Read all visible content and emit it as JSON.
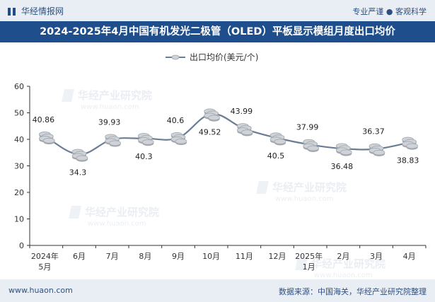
{
  "header": {
    "brand": "华经情报网",
    "slogan": "专业严谨 ● 客观科学"
  },
  "footer": {
    "url": "www.huaon.com",
    "source": "数据来源：中国海关，华经产业研究院整理"
  },
  "watermark": {
    "cn": "华经产业研究院",
    "url": "www.huaon.com"
  },
  "colors": {
    "line": "#6b7d95",
    "title_bg": "#1f4e8c",
    "bar_bg": "#e9eef5",
    "coin": "#cfd2d6"
  },
  "chart_data": {
    "type": "line",
    "title": "2024-2025年4月中国有机发光二极管（OLED）平板显示模组月度出口均价",
    "legend": "出口均价(美元/个)",
    "legend_position": "top-center",
    "categories": [
      "2024年5月",
      "6月",
      "7月",
      "8月",
      "9月",
      "10月",
      "11月",
      "12月",
      "2025年1月",
      "2月",
      "3月",
      "4月"
    ],
    "series": [
      {
        "name": "出口均价(美元/个)",
        "values": [
          40.86,
          34.3,
          39.93,
          40.3,
          40.6,
          49.52,
          43.99,
          40.5,
          37.99,
          36.48,
          36.37,
          38.83
        ]
      }
    ],
    "label_side": [
      "above",
      "below",
      "above",
      "below",
      "above",
      "below",
      "above",
      "below",
      "above",
      "below",
      "above",
      "below"
    ],
    "ylim": [
      0,
      60
    ],
    "yticks": [
      0,
      10,
      20,
      30,
      40,
      50,
      60
    ],
    "xlabel": "",
    "ylabel": "",
    "grid": false
  }
}
